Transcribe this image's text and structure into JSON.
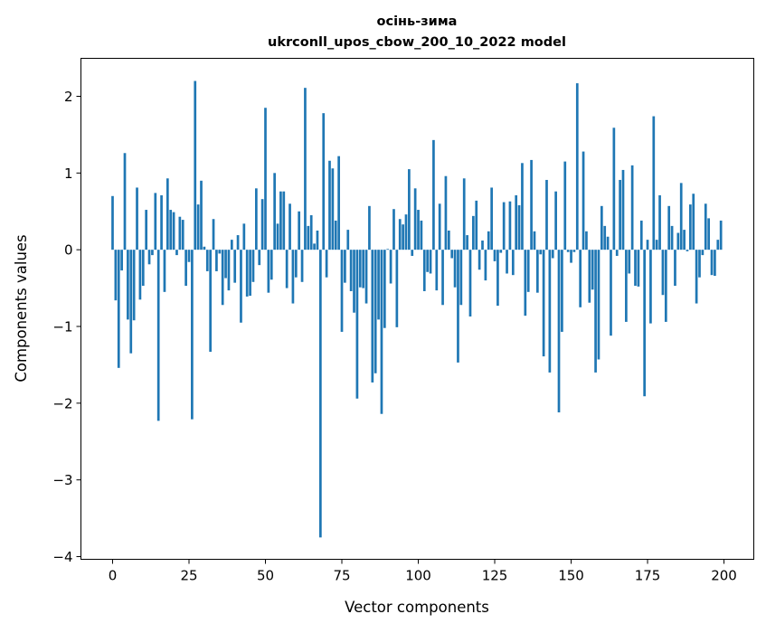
{
  "chart_data": {
    "type": "bar",
    "title": [
      "осінь-зима",
      "ukrconll_upos_cbow_200_10_2022 model"
    ],
    "xlabel": "Vector components",
    "ylabel": "Components values",
    "xlim": [
      -10.35,
      209.75
    ],
    "ylim": [
      -4.035,
      2.495
    ],
    "xticks": [
      0,
      25,
      50,
      75,
      100,
      125,
      150,
      175,
      200
    ],
    "xtick_labels": [
      "0",
      "25",
      "50",
      "75",
      "100",
      "125",
      "150",
      "175",
      "200"
    ],
    "yticks": [
      -4,
      -3,
      -2,
      -1,
      0,
      1,
      2
    ],
    "ytick_labels": [
      "−4",
      "−3",
      "−2",
      "−1",
      "0",
      "1",
      "2"
    ],
    "grid": false,
    "color": "#1f77b4",
    "x_start": 0,
    "values": [
      0.7,
      -0.66,
      -1.54,
      -0.27,
      1.26,
      -0.91,
      -1.35,
      -0.92,
      0.81,
      -0.65,
      -0.47,
      0.52,
      -0.19,
      -0.07,
      0.74,
      -2.23,
      0.71,
      -0.55,
      0.93,
      0.52,
      0.49,
      -0.07,
      0.43,
      0.39,
      -0.47,
      -0.16,
      -2.21,
      2.2,
      0.59,
      0.9,
      0.04,
      -0.28,
      -1.33,
      0.4,
      -0.28,
      -0.05,
      -0.72,
      -0.37,
      -0.53,
      0.13,
      -0.43,
      0.19,
      -0.95,
      0.34,
      -0.61,
      -0.6,
      -0.42,
      0.8,
      -0.2,
      0.66,
      1.85,
      -0.56,
      -0.39,
      1.0,
      0.34,
      0.76,
      0.76,
      -0.5,
      0.6,
      -0.7,
      -0.36,
      0.5,
      -0.42,
      2.11,
      0.31,
      0.45,
      0.08,
      0.25,
      -3.75,
      1.78,
      -0.36,
      1.16,
      1.06,
      0.38,
      1.22,
      -1.07,
      -0.43,
      0.26,
      -0.54,
      -0.82,
      -1.94,
      -0.49,
      -0.5,
      -0.7,
      0.57,
      -1.73,
      -1.61,
      -0.91,
      -2.14,
      -1.02,
      0.01,
      -0.44,
      0.53,
      -1.01,
      0.4,
      0.33,
      0.46,
      1.05,
      -0.08,
      0.8,
      0.52,
      0.38,
      -0.54,
      -0.29,
      -0.31,
      1.43,
      -0.53,
      0.6,
      -0.72,
      0.96,
      0.25,
      -0.11,
      -0.49,
      -1.47,
      -0.72,
      0.93,
      0.19,
      -0.87,
      0.44,
      0.64,
      -0.26,
      0.12,
      -0.4,
      0.24,
      0.81,
      -0.15,
      -0.73,
      -0.04,
      0.62,
      -0.31,
      0.63,
      -0.33,
      0.71,
      0.58,
      1.13,
      -0.86,
      -0.55,
      1.17,
      0.24,
      -0.56,
      -0.06,
      -1.39,
      0.91,
      -1.6,
      -0.11,
      0.76,
      -2.12,
      -1.07,
      1.15,
      -0.03,
      -0.17,
      -0.03,
      2.17,
      -0.75,
      1.28,
      0.24,
      -0.69,
      -0.52,
      -1.6,
      -1.43,
      0.57,
      0.31,
      0.17,
      -1.12,
      1.59,
      -0.08,
      0.91,
      1.04,
      -0.94,
      -0.31,
      1.1,
      -0.47,
      -0.48,
      0.38,
      -1.91,
      0.13,
      -0.96,
      1.74,
      0.13,
      0.71,
      -0.59,
      -0.94,
      0.57,
      0.31,
      -0.47,
      0.22,
      0.87,
      0.26,
      -0.02,
      0.59,
      0.73,
      -0.7,
      -0.36,
      -0.07,
      0.6,
      0.41,
      -0.33,
      -0.34,
      0.13,
      0.38
    ]
  }
}
